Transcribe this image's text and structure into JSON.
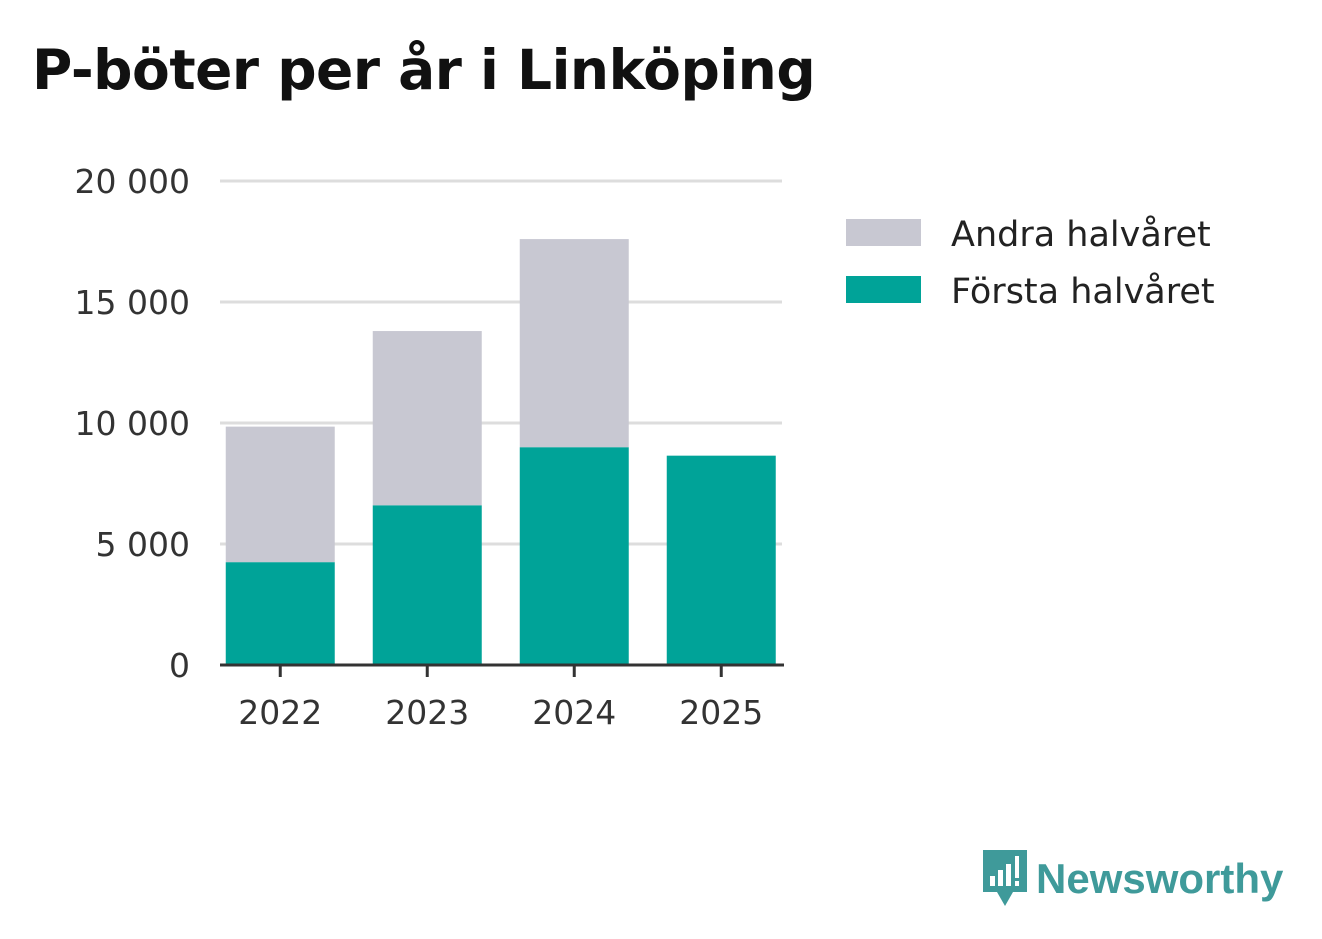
{
  "chart_data": {
    "type": "bar",
    "stacked": true,
    "title": "P-böter per år i Linköping",
    "categories": [
      "2022",
      "2023",
      "2024",
      "2025"
    ],
    "series": [
      {
        "name": "Första halvåret",
        "color": "#00a398",
        "values": [
          4250,
          6600,
          9000,
          8650
        ]
      },
      {
        "name": "Andra halvåret",
        "color": "#c8c8d2",
        "values": [
          5600,
          7200,
          8600,
          0
        ]
      }
    ],
    "legend": [
      "Andra halvåret",
      "Första halvåret"
    ],
    "legend_position": "right",
    "ylim": [
      0,
      20000
    ],
    "yticks": [
      0,
      5000,
      10000,
      15000,
      20000
    ],
    "ytick_labels": [
      "0",
      "5 000",
      "10 000",
      "15 000",
      "20 000"
    ],
    "grid": true,
    "xlabel": "",
    "ylabel": ""
  },
  "brand": {
    "name": "Newsworthy",
    "icon": "newsworthy-logo-icon",
    "color": "#3f9a9a"
  }
}
